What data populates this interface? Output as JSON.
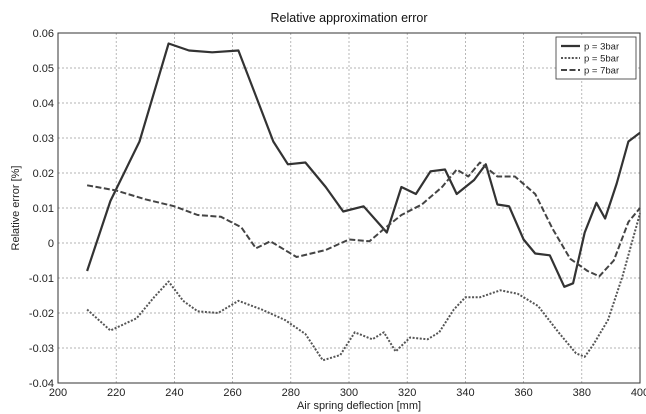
{
  "chart_data": {
    "type": "line",
    "title": "Relative approximation error",
    "xlabel": "Air spring deflection [mm]",
    "ylabel": "Relative error [%]",
    "xlim": [
      200,
      400
    ],
    "ylim": [
      -0.04,
      0.06
    ],
    "xticks": [
      200,
      220,
      240,
      260,
      280,
      300,
      320,
      340,
      360,
      380,
      400
    ],
    "yticks": [
      -0.04,
      -0.03,
      -0.02,
      -0.01,
      0,
      0.01,
      0.02,
      0.03,
      0.04,
      0.05,
      0.06
    ],
    "xtick_labels": [
      "200",
      "220",
      "240",
      "260",
      "280",
      "300",
      "320",
      "340",
      "360",
      "380",
      "400"
    ],
    "ytick_labels": [
      "-0.04",
      "-0.03",
      "-0.02",
      "-0.01",
      "0",
      "0.01",
      "0.02",
      "0.03",
      "0.04",
      "0.05",
      "0.06"
    ],
    "grid": true,
    "legend_position": "top-right",
    "series": [
      {
        "name": "p = 3bar",
        "style": "solid",
        "color": "#333333",
        "points": [
          [
            210,
            -0.008
          ],
          [
            218,
            0.012
          ],
          [
            228,
            0.029
          ],
          [
            238,
            0.057
          ],
          [
            245,
            0.055
          ],
          [
            253,
            0.0545
          ],
          [
            262,
            0.055
          ],
          [
            268,
            0.042
          ],
          [
            274,
            0.029
          ],
          [
            279,
            0.0225
          ],
          [
            285,
            0.023
          ],
          [
            292,
            0.016
          ],
          [
            298,
            0.009
          ],
          [
            305,
            0.0105
          ],
          [
            313,
            0.003
          ],
          [
            318,
            0.016
          ],
          [
            323,
            0.014
          ],
          [
            328,
            0.0205
          ],
          [
            333,
            0.021
          ],
          [
            337,
            0.014
          ],
          [
            343,
            0.018
          ],
          [
            347,
            0.0225
          ],
          [
            351,
            0.011
          ],
          [
            355,
            0.0105
          ],
          [
            360,
            0.001
          ],
          [
            364,
            -0.003
          ],
          [
            369,
            -0.0035
          ],
          [
            374,
            -0.0125
          ],
          [
            377,
            -0.0115
          ],
          [
            381,
            0.003
          ],
          [
            385,
            0.0115
          ],
          [
            388,
            0.007
          ],
          [
            392,
            0.017
          ],
          [
            396,
            0.029
          ],
          [
            400,
            0.0315
          ]
        ]
      },
      {
        "name": "p = 5bar",
        "style": "dotted",
        "color": "#555555",
        "points": [
          [
            210,
            -0.019
          ],
          [
            218,
            -0.025
          ],
          [
            227,
            -0.0215
          ],
          [
            233,
            -0.0155
          ],
          [
            238,
            -0.011
          ],
          [
            243,
            -0.0165
          ],
          [
            248,
            -0.0195
          ],
          [
            255,
            -0.02
          ],
          [
            262,
            -0.0165
          ],
          [
            270,
            -0.019
          ],
          [
            278,
            -0.022
          ],
          [
            285,
            -0.026
          ],
          [
            291,
            -0.0335
          ],
          [
            297,
            -0.032
          ],
          [
            302,
            -0.0255
          ],
          [
            308,
            -0.0275
          ],
          [
            312,
            -0.0255
          ],
          [
            316,
            -0.031
          ],
          [
            321,
            -0.027
          ],
          [
            327,
            -0.0275
          ],
          [
            331,
            -0.0255
          ],
          [
            336,
            -0.019
          ],
          [
            340,
            -0.0155
          ],
          [
            345,
            -0.0155
          ],
          [
            352,
            -0.0135
          ],
          [
            358,
            -0.0145
          ],
          [
            365,
            -0.018
          ],
          [
            372,
            -0.0255
          ],
          [
            378,
            -0.0315
          ],
          [
            381,
            -0.0325
          ],
          [
            384,
            -0.029
          ],
          [
            389,
            -0.022
          ],
          [
            394,
            -0.0095
          ],
          [
            400,
            0.0085
          ]
        ]
      },
      {
        "name": "p = 7bar",
        "style": "dashed",
        "color": "#444444",
        "points": [
          [
            210,
            0.0165
          ],
          [
            220,
            0.015
          ],
          [
            230,
            0.0125
          ],
          [
            240,
            0.0105
          ],
          [
            248,
            0.008
          ],
          [
            256,
            0.0075
          ],
          [
            263,
            0.0045
          ],
          [
            268,
            -0.0015
          ],
          [
            273,
            0.0005
          ],
          [
            282,
            -0.004
          ],
          [
            292,
            -0.002
          ],
          [
            300,
            0.001
          ],
          [
            307,
            0.0005
          ],
          [
            312,
            0.004
          ],
          [
            318,
            0.008
          ],
          [
            325,
            0.011
          ],
          [
            332,
            0.016
          ],
          [
            337,
            0.021
          ],
          [
            341,
            0.019
          ],
          [
            345,
            0.023
          ],
          [
            351,
            0.019
          ],
          [
            357,
            0.019
          ],
          [
            364,
            0.014
          ],
          [
            370,
            0.004
          ],
          [
            376,
            -0.0045
          ],
          [
            382,
            -0.008
          ],
          [
            386,
            -0.0095
          ],
          [
            391,
            -0.005
          ],
          [
            396,
            0.006
          ],
          [
            400,
            0.01
          ]
        ]
      }
    ]
  }
}
